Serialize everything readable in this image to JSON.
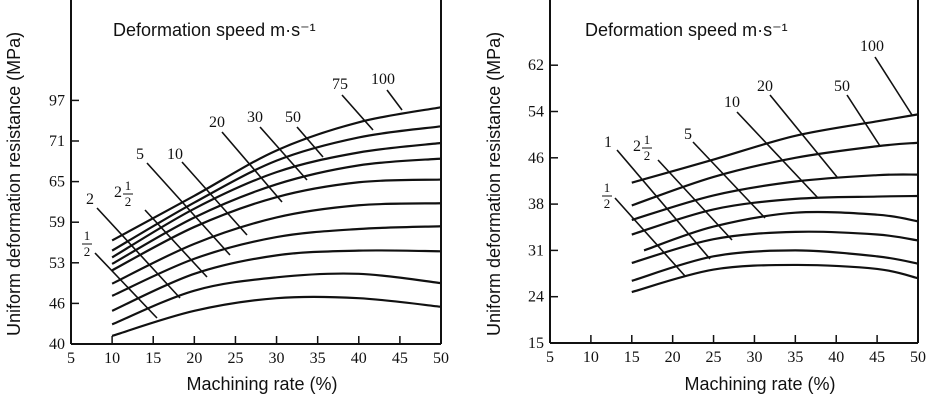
{
  "chart_data": [
    {
      "type": "line",
      "title": "Deformation speed m·s⁻¹",
      "xlabel": "Machining rate (%)",
      "ylabel": "Uniform deformation resistance (MPa)",
      "xlim": [
        5,
        50
      ],
      "xticks": [
        "5",
        "10",
        "15",
        "20",
        "25",
        "30",
        "35",
        "40",
        "45",
        "50"
      ],
      "yticks": [
        40,
        46,
        53,
        59,
        65,
        71,
        97
      ],
      "y_scale": "non-uniform (equally spaced tick labels)",
      "x": [
        10,
        20,
        30,
        40,
        50
      ],
      "series": [
        {
          "name": "1/2",
          "values": [
            41.2,
            44.9,
            46.9,
            46.9,
            45.5
          ]
        },
        {
          "name": "2",
          "values": [
            42.9,
            48.2,
            50.5,
            51.1,
            49.5
          ]
        },
        {
          "name": "2 1/2",
          "values": [
            44.9,
            51.1,
            54.1,
            54.8,
            54.7
          ]
        },
        {
          "name": "5",
          "values": [
            47.3,
            53.6,
            56.8,
            58.0,
            58.4
          ]
        },
        {
          "name": "10",
          "values": [
            49.4,
            55.8,
            59.7,
            61.5,
            61.8
          ]
        },
        {
          "name": "20",
          "values": [
            51.7,
            58.3,
            62.7,
            64.9,
            65.3
          ]
        },
        {
          "name": "30",
          "values": [
            52.8,
            59.7,
            64.6,
            67.4,
            68.4
          ]
        },
        {
          "name": "50",
          "values": [
            53.8,
            61.0,
            66.4,
            69.3,
            70.7
          ]
        },
        {
          "name": "75",
          "values": [
            54.8,
            61.9,
            68.1,
            73.3,
            80.4
          ]
        },
        {
          "name": "100",
          "values": [
            56.3,
            62.9,
            69.6,
            83.0,
            92.6
          ]
        }
      ]
    },
    {
      "type": "line",
      "title": "Deformation speed m·s⁻¹",
      "xlabel": "Machining rate (%)",
      "ylabel": "Uniform deformation resistance (MPa)",
      "xlim": [
        5,
        50
      ],
      "xticks": [
        "5",
        "10",
        "15",
        "20",
        "25",
        "30",
        "35",
        "40",
        "45",
        "50"
      ],
      "yticks": [
        15,
        24,
        31,
        38,
        46,
        54,
        62
      ],
      "y_scale": "non-uniform (equally spaced tick labels)",
      "x": [
        15,
        25,
        35,
        45,
        50
      ],
      "series": [
        {
          "name": "1/2",
          "values": [
            24.7,
            28.1,
            28.8,
            28.2,
            26.8
          ]
        },
        {
          "name": "1",
          "values": [
            26.4,
            30.1,
            31.0,
            30.1,
            29.0
          ]
        },
        {
          "name": "2 1/2",
          "values": [
            29.1,
            32.7,
            33.8,
            33.4,
            32.5
          ]
        },
        {
          "name": "5",
          "values": [
            31.0,
            34.6,
            36.7,
            36.4,
            35.4
          ]
        },
        {
          "name": "10",
          "values": [
            33.4,
            37.2,
            38.9,
            39.3,
            39.4
          ]
        },
        {
          "name": "20",
          "values": [
            35.6,
            39.5,
            41.9,
            43.0,
            43.1
          ]
        },
        {
          "name": "50",
          "values": [
            37.8,
            42.7,
            46.0,
            48.0,
            48.6
          ]
        },
        {
          "name": "100",
          "values": [
            41.7,
            45.7,
            49.8,
            52.3,
            53.5
          ]
        }
      ]
    }
  ]
}
